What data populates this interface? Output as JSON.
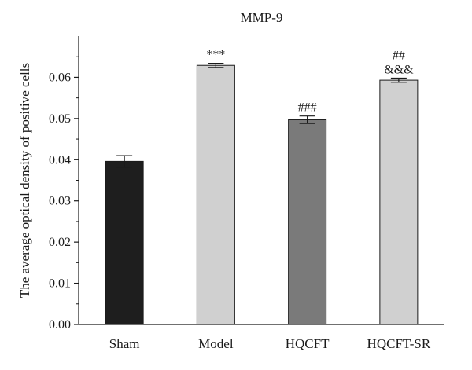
{
  "chart_data": {
    "type": "bar",
    "title": "MMP-9",
    "xlabel": "",
    "ylabel": "The average optical density of positive cells",
    "categories": [
      "Sham",
      "Model",
      "HQCFT",
      "HQCFT-SR"
    ],
    "values": [
      0.0396,
      0.0629,
      0.0497,
      0.0593
    ],
    "errors": [
      0.0014,
      0.0005,
      0.0009,
      0.0005
    ],
    "colors": [
      "#1e1e1e",
      "#d0d0d0",
      "#7a7a7a",
      "#d0d0d0"
    ],
    "annotations": [
      [],
      [
        "***"
      ],
      [
        "###"
      ],
      [
        "&&&",
        "##"
      ]
    ],
    "ylim": [
      0,
      0.07
    ],
    "yticks": [
      "0.00",
      "0.01",
      "0.02",
      "0.03",
      "0.04",
      "0.05",
      "0.06"
    ],
    "grid": false
  }
}
